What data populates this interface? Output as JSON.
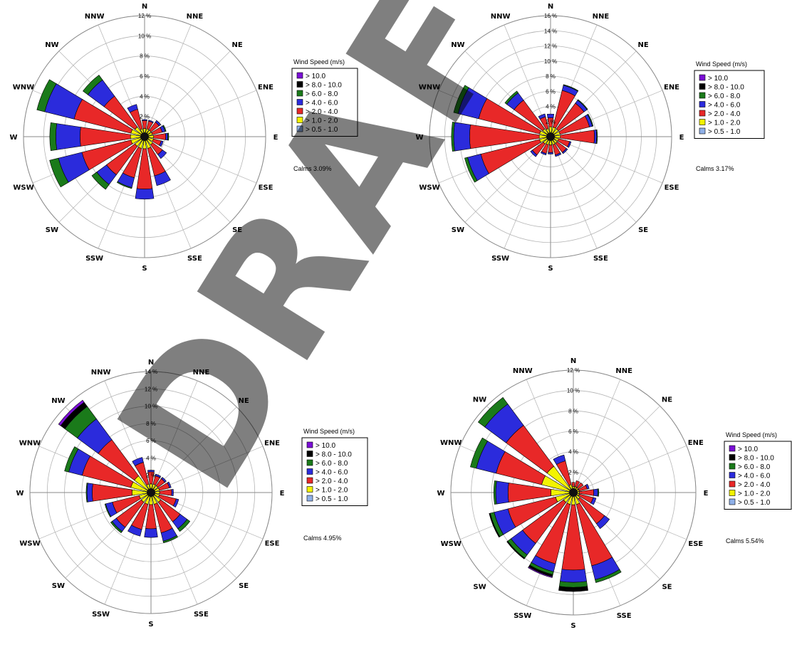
{
  "legend": {
    "title": "Wind Speed (m/s)",
    "bins": [
      {
        "label": "> 10.0",
        "color": "#7b0fd6"
      },
      {
        "label": "> 8.0 - 10.0",
        "color": "#000000"
      },
      {
        "label": "> 6.0 - 8.0",
        "color": "#1a7a1a"
      },
      {
        "label": "> 4.0 - 6.0",
        "color": "#2b2bdc"
      },
      {
        "label": "> 2.0 - 4.0",
        "color": "#e82828"
      },
      {
        "label": "> 1.0 - 2.0",
        "color": "#f3f300"
      },
      {
        "label": "> 0.5 - 1.0",
        "color": "#8fb0e8"
      }
    ]
  },
  "watermark": "DRAFT",
  "chart_data": [
    {
      "type": "wind-rose",
      "directions": [
        "N",
        "NNE",
        "NE",
        "ENE",
        "E",
        "ESE",
        "SE",
        "SSE",
        "S",
        "SSW",
        "SW",
        "WSW",
        "W",
        "WNW",
        "NW",
        "NNW"
      ],
      "rings": [
        "2 %",
        "4 %",
        "6 %",
        "8 %",
        "10 %",
        "12 %"
      ],
      "rmax": 12,
      "calms": "Calms 3.09%",
      "stacks": [
        [
          0.2,
          0.6,
          0.8,
          0.1,
          0,
          0,
          0
        ],
        [
          0.2,
          0.6,
          0.8,
          0.1,
          0,
          0,
          0
        ],
        [
          0.2,
          0.6,
          1.0,
          0.2,
          0,
          0,
          0
        ],
        [
          0.2,
          0.6,
          1.0,
          0.3,
          0.1,
          0,
          0
        ],
        [
          0.2,
          0.7,
          1.2,
          0.2,
          0.1,
          0,
          0
        ],
        [
          0.2,
          0.7,
          0.8,
          0.2,
          0,
          0,
          0
        ],
        [
          0.2,
          0.8,
          1.2,
          0.5,
          0,
          0,
          0
        ],
        [
          0.2,
          1.0,
          2.8,
          1.0,
          0,
          0,
          0
        ],
        [
          0.2,
          1.0,
          4.0,
          1.0,
          0,
          0,
          0
        ],
        [
          0.2,
          1.0,
          3.0,
          1.0,
          0.1,
          0,
          0
        ],
        [
          0.2,
          1.0,
          3.5,
          1.2,
          0.6,
          0,
          0
        ],
        [
          0.2,
          1.2,
          5.0,
          2.4,
          0.9,
          0,
          0
        ],
        [
          0.2,
          1.2,
          5.0,
          2.4,
          0.6,
          0,
          0
        ],
        [
          0.2,
          1.2,
          5.8,
          3.0,
          0.8,
          0,
          0
        ],
        [
          0.2,
          1.0,
          3.8,
          2.0,
          0.6,
          0,
          0
        ],
        [
          0.2,
          0.6,
          2.0,
          0.5,
          0,
          0,
          0
        ]
      ]
    },
    {
      "type": "wind-rose",
      "directions": [
        "N",
        "NNE",
        "NE",
        "ENE",
        "E",
        "ESE",
        "SE",
        "SSE",
        "S",
        "SSW",
        "SW",
        "WSW",
        "W",
        "WNW",
        "NW",
        "NNW"
      ],
      "rings": [
        "2 %",
        "4 %",
        "6 %",
        "8 %",
        "10 %",
        "12 %",
        "14 %",
        "16 %"
      ],
      "rmax": 16,
      "calms": "Calms 3.17%",
      "stacks": [
        [
          0.3,
          1.0,
          1.2,
          0.5,
          0,
          0,
          0
        ],
        [
          0.3,
          1.0,
          5.0,
          0.7,
          0.1,
          0,
          0
        ],
        [
          0.3,
          1.0,
          4.2,
          0.5,
          0.1,
          0,
          0
        ],
        [
          0.3,
          1.0,
          4.0,
          0.4,
          0.1,
          0,
          0
        ],
        [
          0.3,
          1.0,
          4.5,
          0.3,
          0.1,
          0,
          0
        ],
        [
          0.3,
          0.8,
          1.5,
          0.2,
          0,
          0,
          0
        ],
        [
          0.3,
          0.8,
          1.5,
          0.2,
          0,
          0,
          0
        ],
        [
          0.3,
          0.8,
          1.4,
          0.2,
          0,
          0,
          0
        ],
        [
          0.3,
          0.8,
          1.0,
          0.2,
          0,
          0,
          0
        ],
        [
          0.3,
          0.8,
          1.2,
          0.2,
          0,
          0,
          0
        ],
        [
          0.3,
          0.9,
          1.8,
          0.3,
          0,
          0,
          0
        ],
        [
          0.3,
          1.2,
          8.0,
          1.8,
          0.4,
          0,
          0
        ],
        [
          0.3,
          1.2,
          9.2,
          2.1,
          0.3,
          0,
          0
        ],
        [
          0.3,
          1.2,
          8.3,
          2.8,
          0.6,
          0,
          0
        ],
        [
          0.3,
          1.0,
          4.7,
          1.2,
          0.3,
          0,
          0
        ],
        [
          0.3,
          0.8,
          1.6,
          0.4,
          0,
          0,
          0
        ]
      ]
    },
    {
      "type": "wind-rose",
      "directions": [
        "N",
        "NNE",
        "NE",
        "ENE",
        "E",
        "ESE",
        "SE",
        "SSE",
        "S",
        "SSW",
        "SW",
        "WSW",
        "W",
        "WNW",
        "NW",
        "NNW"
      ],
      "rings": [
        "2 %",
        "4 %",
        "6 %",
        "8 %",
        "10 %",
        "12 %",
        "14 %"
      ],
      "rmax": 14,
      "calms": "Calms 4.95%",
      "stacks": [
        [
          0.2,
          0.8,
          1.4,
          0.2,
          0,
          0,
          0
        ],
        [
          0.2,
          0.8,
          1.0,
          0.2,
          0,
          0,
          0
        ],
        [
          0.2,
          0.8,
          1.0,
          0.2,
          0,
          0,
          0
        ],
        [
          0.2,
          0.8,
          1.2,
          0.2,
          0,
          0,
          0
        ],
        [
          0.2,
          0.8,
          1.4,
          0.2,
          0,
          0,
          0
        ],
        [
          0.2,
          0.8,
          2.0,
          0.3,
          0,
          0,
          0
        ],
        [
          0.2,
          1.2,
          2.8,
          1.0,
          0.4,
          0,
          0
        ],
        [
          0.2,
          1.2,
          3.4,
          1.0,
          0.2,
          0,
          0
        ],
        [
          0.2,
          1.2,
          2.8,
          1.0,
          0,
          0,
          0
        ],
        [
          0.2,
          1.2,
          3.0,
          0.8,
          0,
          0,
          0
        ],
        [
          0.2,
          1.2,
          3.6,
          0.6,
          0.2,
          0,
          0
        ],
        [
          0.2,
          1.2,
          3.2,
          0.8,
          0.1,
          0,
          0
        ],
        [
          0.2,
          2.0,
          4.6,
          0.6,
          0.1,
          0,
          0
        ],
        [
          0.2,
          2.2,
          5.8,
          1.6,
          0.5,
          0,
          0
        ],
        [
          0.2,
          2.2,
          5.2,
          3.0,
          1.8,
          0.6,
          0.3
        ],
        [
          0.2,
          0.8,
          2.6,
          0.6,
          0,
          0,
          0
        ]
      ]
    },
    {
      "type": "wind-rose",
      "directions": [
        "N",
        "NNE",
        "NE",
        "ENE",
        "E",
        "ESE",
        "SE",
        "SSE",
        "S",
        "SSW",
        "SW",
        "WSW",
        "W",
        "WNW",
        "NW",
        "NNW"
      ],
      "rings": [
        "2 %",
        "4 %",
        "6 %",
        "8 %",
        "10 %",
        "12 %"
      ],
      "rmax": 12,
      "calms": "Calms 5.54%",
      "stacks": [
        [
          0.2,
          0.4,
          0.4,
          0,
          0,
          0,
          0
        ],
        [
          0.2,
          0.4,
          0.6,
          0,
          0,
          0,
          0
        ],
        [
          0.2,
          0.4,
          0.6,
          0,
          0,
          0,
          0
        ],
        [
          0.2,
          0.4,
          0.8,
          0.2,
          0,
          0,
          0
        ],
        [
          0.2,
          0.4,
          1.4,
          0.4,
          0.1,
          0,
          0
        ],
        [
          0.2,
          0.4,
          1.4,
          0.3,
          0,
          0,
          0
        ],
        [
          0.2,
          0.6,
          3.0,
          0.6,
          0,
          0,
          0
        ],
        [
          0.2,
          1.0,
          6.2,
          1.4,
          0.3,
          0,
          0
        ],
        [
          0.2,
          1.0,
          6.4,
          1.2,
          0.5,
          0.4,
          0
        ],
        [
          0.2,
          1.0,
          6.0,
          0.8,
          0.3,
          0.2,
          0.1
        ],
        [
          0.2,
          1.0,
          5.0,
          1.4,
          0.4,
          0.1,
          0
        ],
        [
          0.2,
          1.6,
          4.8,
          1.4,
          0.4,
          0.1,
          0
        ],
        [
          0.2,
          2.0,
          4.2,
          1.2,
          0.2,
          0,
          0
        ],
        [
          0.2,
          3.0,
          4.6,
          2.0,
          0.6,
          0,
          0
        ],
        [
          0.2,
          3.0,
          5.0,
          2.6,
          0.8,
          0,
          0
        ],
        [
          0.2,
          0.6,
          2.4,
          0.6,
          0,
          0,
          0
        ]
      ]
    }
  ]
}
